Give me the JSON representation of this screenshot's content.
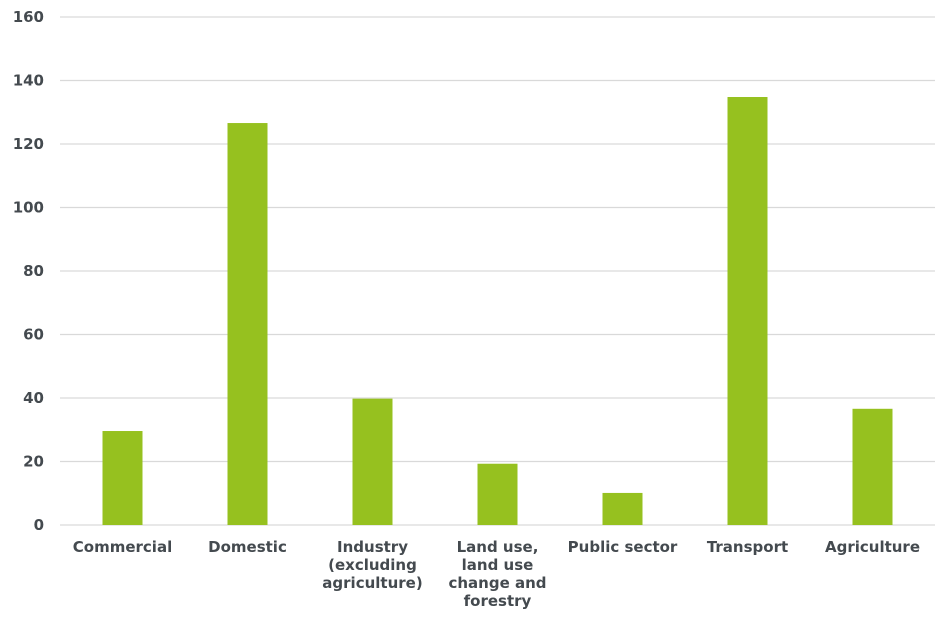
{
  "chart_data": {
    "type": "bar",
    "title": "",
    "xlabel": "",
    "ylabel": "",
    "categories": [
      [
        "Commercial"
      ],
      [
        "Domestic"
      ],
      [
        "Industry",
        "(excluding",
        "agriculture)"
      ],
      [
        "Land use,",
        "land use",
        "change and",
        "forestry"
      ],
      [
        "Public sector"
      ],
      [
        "Transport"
      ],
      [
        "Agriculture"
      ]
    ],
    "values": [
      29.6,
      126.6,
      39.8,
      19.3,
      10.1,
      134.8,
      36.6
    ],
    "ylim": [
      0,
      160
    ],
    "yticks": [
      "0",
      "20",
      "40",
      "60",
      "80",
      "100",
      "120",
      "140",
      "160"
    ],
    "grid": true,
    "legend": "none",
    "colors": {
      "bar": "#96c11f",
      "grid": "#d9d9d9",
      "text": "#444a4f"
    }
  }
}
